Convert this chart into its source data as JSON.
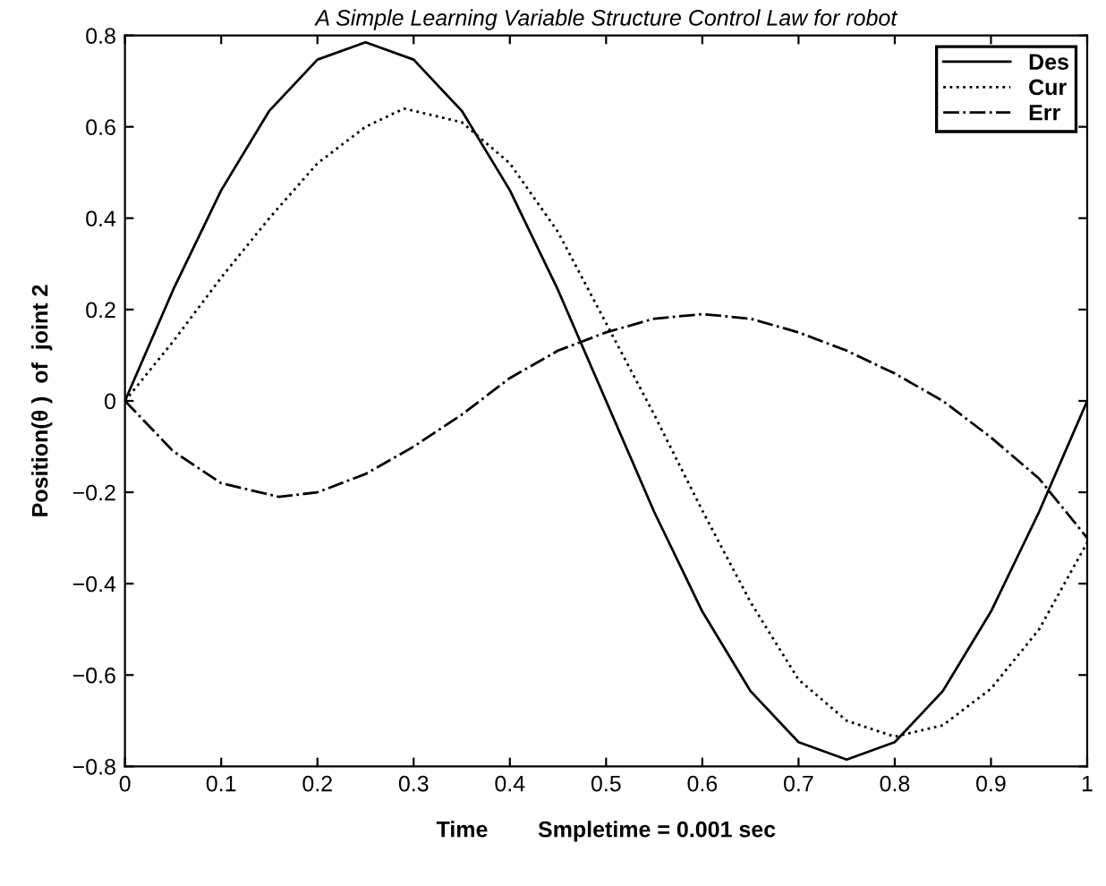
{
  "chart_data": {
    "type": "line",
    "title": "A Simple Learning Variable Structure Control Law for robot",
    "xlabel": "Time        Smpletime = 0.001 sec",
    "ylabel": "Position(θ )  of  joint 2",
    "xlim": [
      0,
      1
    ],
    "ylim": [
      -0.8,
      0.8
    ],
    "xticks": [
      0,
      0.1,
      0.2,
      0.3,
      0.4,
      0.5,
      0.6,
      0.7,
      0.8,
      0.9,
      1
    ],
    "yticks": [
      -0.8,
      -0.6,
      -0.4,
      -0.2,
      0,
      0.2,
      0.4,
      0.6,
      0.8
    ],
    "grid": false,
    "legend": "top right",
    "series": [
      {
        "name": "Des",
        "color": "#000000",
        "line_style": "solid",
        "x": [
          0,
          0.05,
          0.1,
          0.15,
          0.2,
          0.25,
          0.3,
          0.35,
          0.4,
          0.45,
          0.5,
          0.55,
          0.6,
          0.65,
          0.7,
          0.75,
          0.8,
          0.85,
          0.9,
          0.95,
          1
        ],
        "values": [
          0,
          0.243,
          0.461,
          0.635,
          0.747,
          0.785,
          0.747,
          0.635,
          0.461,
          0.243,
          0,
          -0.243,
          -0.461,
          -0.635,
          -0.747,
          -0.785,
          -0.747,
          -0.635,
          -0.461,
          -0.243,
          0
        ]
      },
      {
        "name": "Cur",
        "color": "#000000",
        "line_style": "dotted",
        "x": [
          0,
          0.05,
          0.1,
          0.15,
          0.2,
          0.25,
          0.29,
          0.35,
          0.4,
          0.45,
          0.5,
          0.55,
          0.6,
          0.65,
          0.7,
          0.75,
          0.8,
          0.85,
          0.9,
          0.95,
          1
        ],
        "values": [
          0,
          0.13,
          0.27,
          0.4,
          0.52,
          0.6,
          0.64,
          0.61,
          0.52,
          0.37,
          0.17,
          -0.03,
          -0.24,
          -0.44,
          -0.61,
          -0.7,
          -0.735,
          -0.71,
          -0.63,
          -0.5,
          -0.31
        ]
      },
      {
        "name": "Err",
        "color": "#000000",
        "line_style": "dashdot",
        "x": [
          0,
          0.05,
          0.1,
          0.16,
          0.2,
          0.25,
          0.3,
          0.35,
          0.4,
          0.45,
          0.5,
          0.55,
          0.6,
          0.65,
          0.7,
          0.75,
          0.8,
          0.85,
          0.9,
          0.95,
          1
        ],
        "values": [
          0,
          -0.11,
          -0.18,
          -0.21,
          -0.2,
          -0.16,
          -0.1,
          -0.03,
          0.05,
          0.11,
          0.15,
          0.18,
          0.19,
          0.18,
          0.15,
          0.11,
          0.06,
          0.0,
          -0.08,
          -0.17,
          -0.3
        ]
      }
    ]
  }
}
